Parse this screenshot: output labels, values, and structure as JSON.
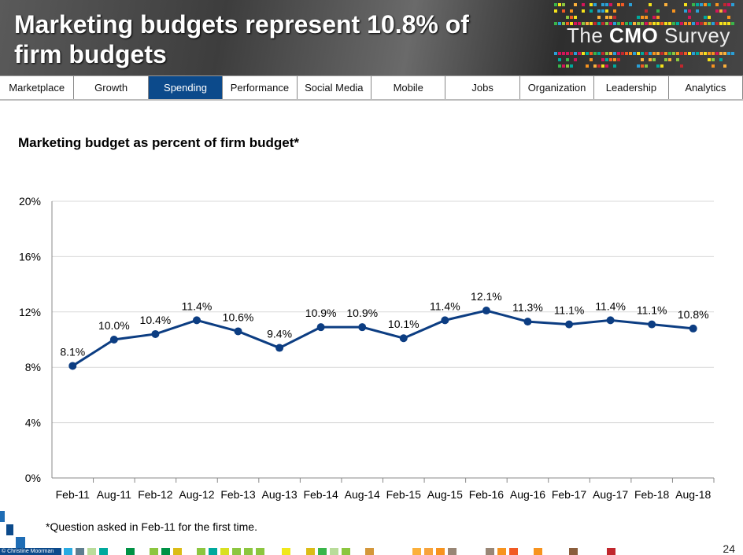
{
  "header": {
    "title": "Marketing budgets represent 10.8% of firm budgets",
    "logo_the": "The",
    "logo_cmo": "CMO",
    "logo_survey": "Survey"
  },
  "nav": {
    "tabs": [
      "Marketplace",
      "Growth",
      "Spending",
      "Performance",
      "Social Media",
      "Mobile",
      "Jobs",
      "Organization",
      "Leadership",
      "Analytics"
    ],
    "active": "Spending"
  },
  "chart_data": {
    "type": "line",
    "title": "Marketing budget as percent of firm budget*",
    "categories": [
      "Feb-11",
      "Aug-11",
      "Feb-12",
      "Aug-12",
      "Feb-13",
      "Aug-13",
      "Feb-14",
      "Aug-14",
      "Feb-15",
      "Aug-15",
      "Feb-16",
      "Aug-16",
      "Feb-17",
      "Aug-17",
      "Feb-18",
      "Aug-18"
    ],
    "series": [
      {
        "name": "Marketing budget as percent of firm budget",
        "values": [
          8.1,
          10.0,
          10.4,
          11.4,
          10.6,
          9.4,
          10.9,
          10.9,
          10.1,
          11.4,
          12.1,
          11.3,
          11.1,
          11.4,
          11.1,
          10.8
        ]
      }
    ],
    "data_labels": [
      "8.1%",
      "10.0%",
      "10.4%",
      "11.4%",
      "10.6%",
      "9.4%",
      "10.9%",
      "10.9%",
      "10.1%",
      "11.4%",
      "12.1%",
      "11.3%",
      "11.1%",
      "11.4%",
      "11.1%",
      "10.8%"
    ],
    "yticks": [
      "0%",
      "4%",
      "8%",
      "12%",
      "16%",
      "20%"
    ],
    "ylim": [
      0,
      20
    ],
    "grid": true,
    "color": "#0c3d82"
  },
  "footer": {
    "note": "*Question asked in Feb-11 for the first time.",
    "page": "24",
    "copyright": "© Christine Moorman"
  },
  "colors": {
    "accent": "#0c4a8b"
  }
}
